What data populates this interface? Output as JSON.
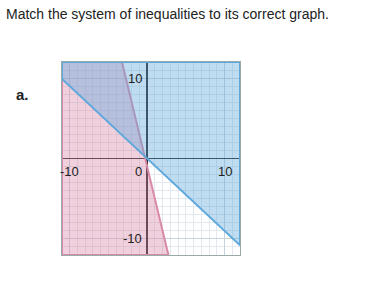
{
  "heading": "Match the system of inequalities to its correct graph.",
  "label": "a.",
  "chart_data": {
    "type": "area",
    "xlim": [
      -11,
      12
    ],
    "ylim": [
      -12,
      12
    ],
    "xticks": [
      -10,
      0,
      10
    ],
    "yticks": [
      -10,
      10
    ],
    "grid": true,
    "series": [
      {
        "color": "#d98aa8",
        "x": [
          -11,
          -3.25,
          2.75,
          -11
        ],
        "values": [
          12,
          12,
          -12,
          -12
        ]
      },
      {
        "color": "#5fa8dc",
        "x": [
          -11,
          12,
          12,
          -11
        ],
        "values": [
          9.9,
          -10.8,
          12,
          12
        ]
      }
    ]
  }
}
